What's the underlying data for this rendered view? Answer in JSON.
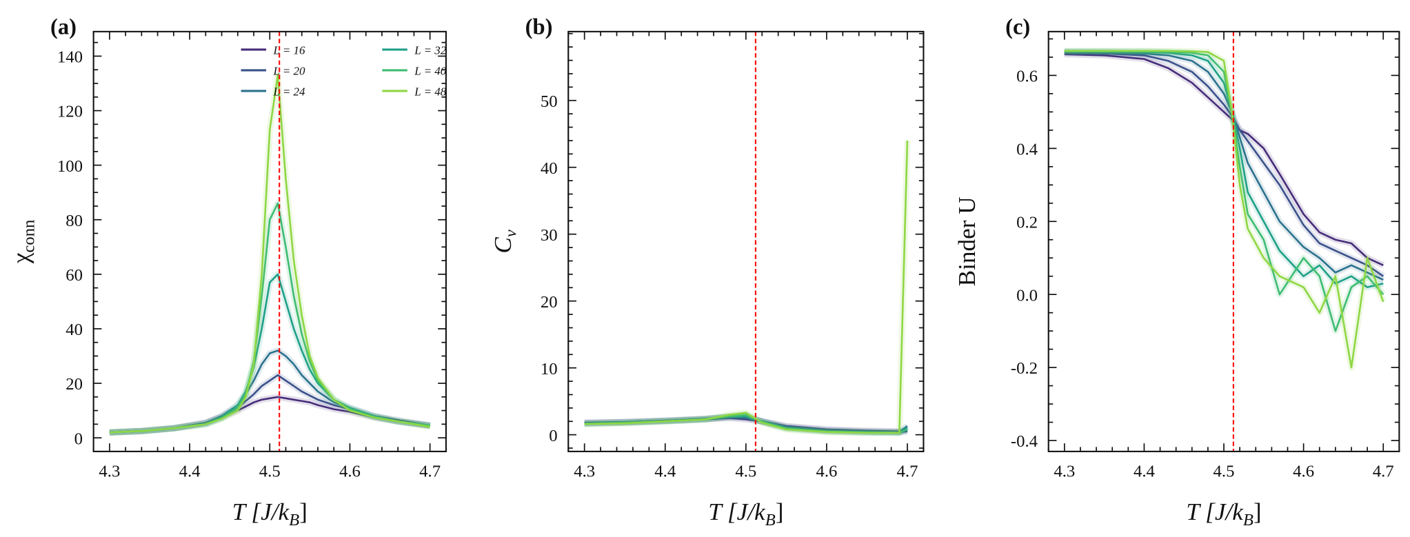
{
  "chart_data": [
    {
      "type": "line",
      "panel_label": "(a)",
      "xlabel": "T [J/k_B]",
      "ylabel": "χ_conn",
      "xlim": [
        4.28,
        4.72
      ],
      "ylim": [
        -5,
        149
      ],
      "xticks": [
        4.3,
        4.4,
        4.5,
        4.6,
        4.7
      ],
      "xtick_labels": [
        "4.3",
        "4.4",
        "4.5",
        "4.6",
        "4.7"
      ],
      "yticks": [
        0,
        20,
        40,
        60,
        80,
        100,
        120,
        140
      ],
      "ytick_labels": [
        "0",
        "20",
        "40",
        "60",
        "80",
        "100",
        "120",
        "140"
      ],
      "vline": {
        "x": 4.512,
        "color": "#ff0000",
        "style": "dashed"
      },
      "legend": {
        "placement": "top",
        "columns": 2
      },
      "x": [
        4.3,
        4.34,
        4.38,
        4.42,
        4.44,
        4.46,
        4.47,
        4.48,
        4.49,
        4.5,
        4.51,
        4.52,
        4.53,
        4.54,
        4.55,
        4.56,
        4.58,
        4.6,
        4.63,
        4.66,
        4.7
      ],
      "series": [
        {
          "name": "L = 16",
          "color": "#472d7b",
          "values": [
            2,
            2.5,
            3.5,
            5.5,
            7.5,
            10,
            11.5,
            13,
            14,
            14.5,
            15,
            14.5,
            14,
            13.5,
            13,
            12,
            10.5,
            9.5,
            7.5,
            6,
            4.5
          ]
        },
        {
          "name": "L = 20",
          "color": "#3b528b",
          "values": [
            2,
            2.5,
            3.5,
            5.5,
            8,
            11,
            13.5,
            16,
            19,
            21,
            23,
            21,
            19,
            17,
            15.5,
            14,
            12,
            10.5,
            8,
            6.5,
            4.5
          ]
        },
        {
          "name": "L = 24",
          "color": "#2c728e",
          "values": [
            2,
            2.5,
            3.5,
            5.5,
            8,
            12,
            16,
            21,
            27,
            31,
            32,
            30,
            27,
            23,
            20,
            17,
            13,
            11,
            8,
            6,
            4.5
          ]
        },
        {
          "name": "L = 32",
          "color": "#1fa088",
          "values": [
            2,
            2.5,
            3.5,
            5,
            7.5,
            12,
            17,
            26,
            40,
            57,
            60,
            50,
            40,
            32,
            25,
            20,
            14,
            11,
            8,
            6,
            4.5
          ]
        },
        {
          "name": "L = 40",
          "color": "#3fbc73",
          "values": [
            2,
            2.5,
            3.5,
            5,
            7,
            11,
            16,
            28,
            52,
            80,
            86,
            70,
            52,
            38,
            28,
            21,
            14,
            10.5,
            7.5,
            6,
            4.5
          ]
        },
        {
          "name": "L = 48",
          "color": "#8fd744",
          "values": [
            2,
            2.5,
            3.5,
            5,
            7,
            10,
            15,
            27,
            60,
            113,
            133,
            95,
            65,
            45,
            30,
            22,
            14,
            10,
            7.5,
            6,
            4
          ]
        }
      ]
    },
    {
      "type": "line",
      "panel_label": "(b)",
      "xlabel": "T [J/k_B]",
      "ylabel": "C_v",
      "xlim": [
        4.28,
        4.72
      ],
      "ylim": [
        -2.5,
        60.3
      ],
      "xticks": [
        4.3,
        4.4,
        4.5,
        4.6,
        4.7
      ],
      "xtick_labels": [
        "4.3",
        "4.4",
        "4.5",
        "4.6",
        "4.7"
      ],
      "yticks": [
        0,
        10,
        20,
        30,
        40,
        50
      ],
      "ytick_labels": [
        "0",
        "10",
        "20",
        "30",
        "40",
        "50"
      ],
      "vline": {
        "x": 4.512,
        "color": "#ff0000",
        "style": "dashed"
      },
      "x": [
        4.3,
        4.35,
        4.4,
        4.45,
        4.48,
        4.5,
        4.52,
        4.55,
        4.6,
        4.65,
        4.69,
        4.7
      ],
      "series": [
        {
          "color": "#472d7b",
          "values": [
            1.8,
            1.9,
            2.1,
            2.3,
            2.5,
            2.3,
            2.0,
            1.3,
            0.8,
            0.6,
            0.5,
            0.6
          ]
        },
        {
          "color": "#3b528b",
          "values": [
            1.8,
            1.9,
            2.1,
            2.4,
            2.6,
            2.5,
            2.0,
            1.2,
            0.7,
            0.5,
            0.4,
            0.5
          ]
        },
        {
          "color": "#2c728e",
          "values": [
            1.7,
            1.9,
            2.1,
            2.4,
            2.7,
            2.6,
            2.0,
            1.1,
            0.6,
            0.4,
            0.4,
            1.3
          ]
        },
        {
          "color": "#1fa088",
          "values": [
            1.7,
            1.8,
            2.0,
            2.3,
            2.7,
            2.8,
            2.0,
            1.0,
            0.5,
            0.4,
            0.3,
            1.0
          ]
        },
        {
          "color": "#3fbc73",
          "values": [
            1.6,
            1.8,
            2.0,
            2.3,
            2.8,
            3.0,
            1.9,
            0.9,
            0.5,
            0.3,
            0.3,
            0.8
          ]
        },
        {
          "color": "#8fd744",
          "values": [
            1.6,
            1.7,
            2.0,
            2.3,
            3.0,
            3.3,
            1.8,
            0.8,
            0.4,
            0.3,
            0.3,
            44
          ]
        }
      ]
    },
    {
      "type": "line",
      "panel_label": "(c)",
      "xlabel": "T [J/k_B]",
      "ylabel": "Binder U",
      "xlim": [
        4.28,
        4.72
      ],
      "ylim": [
        -0.43,
        0.72
      ],
      "xticks": [
        4.3,
        4.4,
        4.5,
        4.6,
        4.7
      ],
      "xtick_labels": [
        "4.3",
        "4.4",
        "4.5",
        "4.6",
        "4.7"
      ],
      "yticks": [
        -0.4,
        -0.2,
        0.0,
        0.2,
        0.4,
        0.6
      ],
      "ytick_labels": [
        "-0.4",
        "-0.2",
        "0.0",
        "0.2",
        "0.4",
        "0.6"
      ],
      "vline": {
        "x": 4.512,
        "color": "#ff0000",
        "style": "dashed"
      },
      "x": [
        4.3,
        4.35,
        4.4,
        4.43,
        4.46,
        4.48,
        4.5,
        4.51,
        4.52,
        4.53,
        4.55,
        4.57,
        4.6,
        4.62,
        4.64,
        4.66,
        4.68,
        4.7
      ],
      "series": [
        {
          "color": "#472d7b",
          "values": [
            0.658,
            0.655,
            0.645,
            0.62,
            0.58,
            0.54,
            0.5,
            0.48,
            0.45,
            0.44,
            0.4,
            0.33,
            0.22,
            0.17,
            0.15,
            0.14,
            0.1,
            0.08
          ]
        },
        {
          "color": "#3b528b",
          "values": [
            0.662,
            0.66,
            0.655,
            0.64,
            0.61,
            0.57,
            0.52,
            0.49,
            0.45,
            0.42,
            0.36,
            0.3,
            0.19,
            0.14,
            0.12,
            0.1,
            0.08,
            0.05
          ]
        },
        {
          "color": "#2c728e",
          "values": [
            0.664,
            0.663,
            0.66,
            0.655,
            0.64,
            0.61,
            0.55,
            0.5,
            0.43,
            0.36,
            0.28,
            0.2,
            0.13,
            0.1,
            0.06,
            0.08,
            0.06,
            0.04
          ]
        },
        {
          "color": "#1fa088",
          "values": [
            0.665,
            0.665,
            0.664,
            0.662,
            0.655,
            0.64,
            0.58,
            0.5,
            0.4,
            0.28,
            0.2,
            0.12,
            0.05,
            0.08,
            0.03,
            0.05,
            0.02,
            0.03
          ]
        },
        {
          "color": "#3fbc73",
          "values": [
            0.666,
            0.666,
            0.666,
            0.665,
            0.662,
            0.655,
            0.61,
            0.5,
            0.35,
            0.22,
            0.15,
            0.0,
            0.1,
            0.05,
            -0.1,
            0.02,
            0.05,
            0.0
          ]
        },
        {
          "color": "#8fd744",
          "values": [
            0.667,
            0.667,
            0.667,
            0.667,
            0.666,
            0.664,
            0.64,
            0.5,
            0.3,
            0.18,
            0.1,
            0.05,
            0.02,
            -0.05,
            0.05,
            -0.2,
            0.1,
            -0.02
          ]
        }
      ]
    }
  ]
}
